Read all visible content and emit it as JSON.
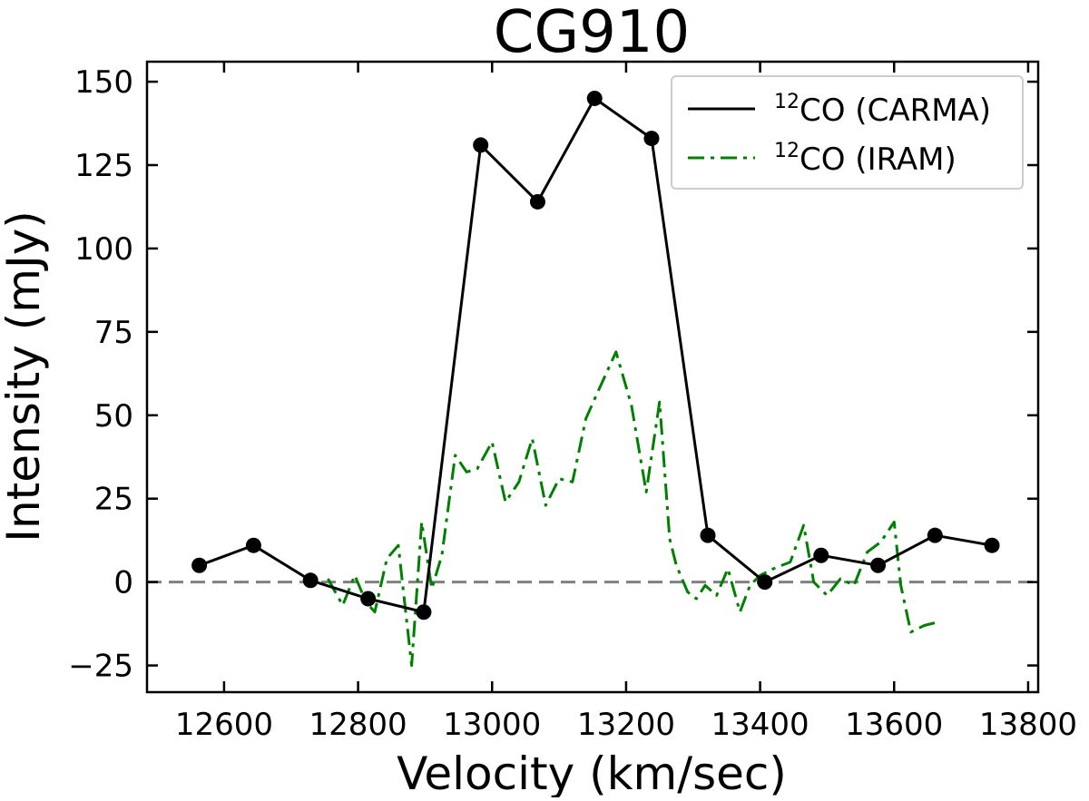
{
  "chart_data": {
    "type": "line",
    "title": "CG910",
    "xlabel": "Velocity (km/sec)",
    "ylabel": "Intensity (mJy)",
    "xlim": [
      12485,
      13815
    ],
    "ylim": [
      -33,
      156
    ],
    "xticks": [
      12600,
      12800,
      13000,
      13200,
      13400,
      13600,
      13800
    ],
    "yticks": [
      -25,
      0,
      25,
      50,
      75,
      100,
      125,
      150
    ],
    "xtick_labels": [
      "12600",
      "12800",
      "13000",
      "13200",
      "13400",
      "13600",
      "13800"
    ],
    "ytick_labels": [
      "−25",
      "0",
      "25",
      "50",
      "75",
      "100",
      "125",
      "150"
    ],
    "reference_line": {
      "y": 0,
      "style": "dashed",
      "color": "#808080"
    },
    "legend": {
      "position": "top-right",
      "entries": [
        {
          "sup": "12",
          "text": "CO (CARMA)"
        },
        {
          "sup": "12",
          "text": "CO (IRAM)"
        }
      ]
    },
    "series": [
      {
        "name": "12CO (CARMA)",
        "color": "#000000",
        "style": "solid",
        "markers": true,
        "x": [
          12563,
          12644,
          12729,
          12815,
          12898,
          12983,
          13068,
          13153,
          13238,
          13322,
          13407,
          13491,
          13576,
          13661,
          13746
        ],
        "y": [
          5,
          11,
          0.5,
          -5,
          -9,
          131,
          114,
          145,
          133,
          14,
          0,
          8,
          5,
          14,
          11
        ]
      },
      {
        "name": "12CO (IRAM)",
        "color": "#008000",
        "style": "dashdot",
        "markers": false,
        "x": [
          12755,
          12777,
          12795,
          12812,
          12825,
          12843,
          12860,
          12880,
          12895,
          12910,
          12925,
          12945,
          12962,
          12978,
          13000,
          13020,
          13040,
          13060,
          13080,
          13100,
          13120,
          13140,
          13160,
          13185,
          13208,
          13230,
          13250,
          13265,
          13275,
          13292,
          13305,
          13318,
          13335,
          13352,
          13370,
          13385,
          13400,
          13420,
          13445,
          13465,
          13480,
          13500,
          13520,
          13540,
          13560,
          13580,
          13600,
          13610,
          13625,
          13645,
          13665
        ],
        "y": [
          1,
          -7,
          2,
          -6,
          -9,
          7,
          11,
          -25,
          18,
          -2,
          8,
          38,
          33,
          34,
          42,
          24,
          30,
          43,
          23,
          31,
          30,
          49,
          58,
          69,
          53,
          27,
          54,
          13,
          5,
          -3,
          -5,
          -1,
          -4,
          4,
          -9,
          -1,
          2,
          4,
          6,
          17,
          0,
          -4,
          1,
          -1,
          9,
          12,
          18,
          -1,
          -15,
          -13,
          -12
        ]
      }
    ]
  }
}
